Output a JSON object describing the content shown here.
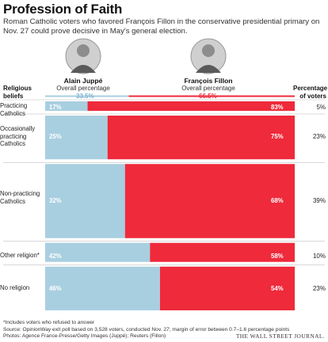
{
  "chart_data": {
    "type": "bar",
    "title": "Profession of Faith",
    "subtitle": "Roman Catholic voters who favored François Fillon in the conservative presidential primary on Nov. 27 could prove decisive in May's general election.",
    "candidates": [
      {
        "name": "Alain Juppé",
        "caption": "Overall percentage",
        "overall": "33.5%",
        "overall_value": 33.5,
        "color": "#a8cfe0"
      },
      {
        "name": "François Fillon",
        "caption": "Overall percentage",
        "overall": "66.5%",
        "overall_value": 66.5,
        "color": "#ee2a3b"
      }
    ],
    "row_header": "Religious beliefs",
    "share_header": "Percentage of voters",
    "categories": [
      "Practicing Catholics",
      "Occasionally practicing Catholics",
      "Non-practicing Catholics",
      "Other religion*",
      "No religion"
    ],
    "series": [
      {
        "name": "Alain Juppé",
        "values": [
          17,
          25,
          32,
          42,
          46
        ],
        "labels": [
          "17%",
          "25%",
          "32%",
          "42%",
          "46%"
        ]
      },
      {
        "name": "François Fillon",
        "values": [
          83,
          75,
          68,
          58,
          54
        ],
        "labels": [
          "83%",
          "75%",
          "68%",
          "58%",
          "54%"
        ]
      }
    ],
    "share_of_voters": [
      5,
      23,
      39,
      10,
      23
    ],
    "share_labels": [
      "5%",
      "23%",
      "39%",
      "10%",
      "23%"
    ],
    "footnote": "*Includes voters who refused to answer",
    "source": "Source: OpinionWay exit poll based on 3,528 voters, conducted Nov. 27; margin of error between 0.7–1.6 percentage points",
    "photos": "Photos: Agence France-Presse/Getty Images (Juppé); Reuters (Fillon)",
    "publisher": "THE WALL STREET JOURNAL."
  }
}
